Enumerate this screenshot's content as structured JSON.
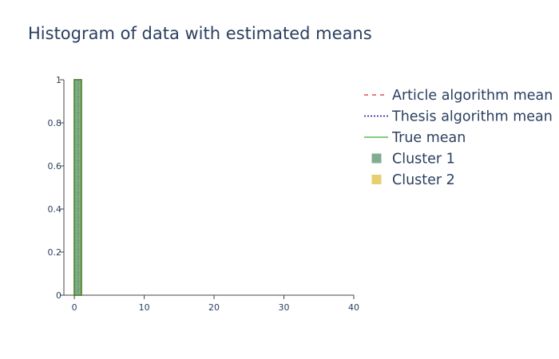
{
  "chart_data": {
    "type": "bar",
    "title": "Histogram of data with estimated means",
    "xlabel": "",
    "ylabel": "",
    "xlim": [
      -1.5,
      40
    ],
    "ylim": [
      0,
      1
    ],
    "grid": false,
    "legend_position": "right",
    "x_ticks": [
      0,
      10,
      20,
      30,
      40
    ],
    "x_tick_labels": [
      "0",
      "10",
      "20",
      "30",
      "40"
    ],
    "y_ticks": [
      0,
      0.2,
      0.4,
      0.6,
      0.8,
      1
    ],
    "y_tick_labels": [
      "0",
      "0.2",
      "0.4",
      "0.6",
      "0.8",
      "1"
    ],
    "histograms": [
      {
        "name": "Cluster 1",
        "color": "#80ad91",
        "bins": [
          {
            "x0": 0,
            "x1": 1,
            "value": 1
          }
        ]
      },
      {
        "name": "Cluster 2",
        "color": "#e6cf6e",
        "bins": []
      }
    ],
    "overlap_color": "#5e8a37",
    "mean_lines": [
      {
        "name": "Article algorithm mean",
        "x": 0.55,
        "color": "#d9534f",
        "dash": "dashed"
      },
      {
        "name": "Thesis algorithm mean",
        "x": 0.5,
        "color": "#1a1aa6",
        "dash": "dotted"
      },
      {
        "name": "True mean",
        "x": 0.5,
        "color": "#5cb85c",
        "dash": "solid"
      }
    ],
    "legend": [
      {
        "label": "Article algorithm mean",
        "marker": "line",
        "dash": "dashed",
        "color": "#d9534f"
      },
      {
        "label": "Thesis algorithm mean",
        "marker": "line",
        "dash": "dotted",
        "color": "#1a1aa6"
      },
      {
        "label": "True mean",
        "marker": "line",
        "dash": "solid",
        "color": "#5cb85c"
      },
      {
        "label": "Cluster 1",
        "marker": "square",
        "color": "#80ad91"
      },
      {
        "label": "Cluster 2",
        "marker": "square",
        "color": "#e6cf6e"
      }
    ]
  }
}
